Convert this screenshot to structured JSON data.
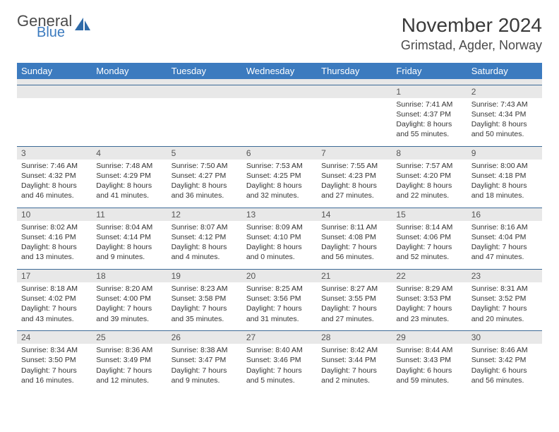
{
  "logo": {
    "general": "General",
    "blue": "Blue"
  },
  "header": {
    "month_title": "November 2024",
    "location": "Grimstad, Agder, Norway"
  },
  "colors": {
    "header_bg": "#3c7bbf",
    "header_fg": "#ffffff",
    "numrow_bg": "#e8e8e8",
    "row_border": "#3c6a96",
    "text": "#333333",
    "logo_blue": "#3c7bbf"
  },
  "day_names": [
    "Sunday",
    "Monday",
    "Tuesday",
    "Wednesday",
    "Thursday",
    "Friday",
    "Saturday"
  ],
  "weeks": [
    [
      null,
      null,
      null,
      null,
      null,
      {
        "n": "1",
        "sunrise": "7:41 AM",
        "sunset": "4:37 PM",
        "dh": "8",
        "dm": "55"
      },
      {
        "n": "2",
        "sunrise": "7:43 AM",
        "sunset": "4:34 PM",
        "dh": "8",
        "dm": "50"
      }
    ],
    [
      {
        "n": "3",
        "sunrise": "7:46 AM",
        "sunset": "4:32 PM",
        "dh": "8",
        "dm": "46"
      },
      {
        "n": "4",
        "sunrise": "7:48 AM",
        "sunset": "4:29 PM",
        "dh": "8",
        "dm": "41"
      },
      {
        "n": "5",
        "sunrise": "7:50 AM",
        "sunset": "4:27 PM",
        "dh": "8",
        "dm": "36"
      },
      {
        "n": "6",
        "sunrise": "7:53 AM",
        "sunset": "4:25 PM",
        "dh": "8",
        "dm": "32"
      },
      {
        "n": "7",
        "sunrise": "7:55 AM",
        "sunset": "4:23 PM",
        "dh": "8",
        "dm": "27"
      },
      {
        "n": "8",
        "sunrise": "7:57 AM",
        "sunset": "4:20 PM",
        "dh": "8",
        "dm": "22"
      },
      {
        "n": "9",
        "sunrise": "8:00 AM",
        "sunset": "4:18 PM",
        "dh": "8",
        "dm": "18"
      }
    ],
    [
      {
        "n": "10",
        "sunrise": "8:02 AM",
        "sunset": "4:16 PM",
        "dh": "8",
        "dm": "13"
      },
      {
        "n": "11",
        "sunrise": "8:04 AM",
        "sunset": "4:14 PM",
        "dh": "8",
        "dm": "9"
      },
      {
        "n": "12",
        "sunrise": "8:07 AM",
        "sunset": "4:12 PM",
        "dh": "8",
        "dm": "4"
      },
      {
        "n": "13",
        "sunrise": "8:09 AM",
        "sunset": "4:10 PM",
        "dh": "8",
        "dm": "0"
      },
      {
        "n": "14",
        "sunrise": "8:11 AM",
        "sunset": "4:08 PM",
        "dh": "7",
        "dm": "56"
      },
      {
        "n": "15",
        "sunrise": "8:14 AM",
        "sunset": "4:06 PM",
        "dh": "7",
        "dm": "52"
      },
      {
        "n": "16",
        "sunrise": "8:16 AM",
        "sunset": "4:04 PM",
        "dh": "7",
        "dm": "47"
      }
    ],
    [
      {
        "n": "17",
        "sunrise": "8:18 AM",
        "sunset": "4:02 PM",
        "dh": "7",
        "dm": "43"
      },
      {
        "n": "18",
        "sunrise": "8:20 AM",
        "sunset": "4:00 PM",
        "dh": "7",
        "dm": "39"
      },
      {
        "n": "19",
        "sunrise": "8:23 AM",
        "sunset": "3:58 PM",
        "dh": "7",
        "dm": "35"
      },
      {
        "n": "20",
        "sunrise": "8:25 AM",
        "sunset": "3:56 PM",
        "dh": "7",
        "dm": "31"
      },
      {
        "n": "21",
        "sunrise": "8:27 AM",
        "sunset": "3:55 PM",
        "dh": "7",
        "dm": "27"
      },
      {
        "n": "22",
        "sunrise": "8:29 AM",
        "sunset": "3:53 PM",
        "dh": "7",
        "dm": "23"
      },
      {
        "n": "23",
        "sunrise": "8:31 AM",
        "sunset": "3:52 PM",
        "dh": "7",
        "dm": "20"
      }
    ],
    [
      {
        "n": "24",
        "sunrise": "8:34 AM",
        "sunset": "3:50 PM",
        "dh": "7",
        "dm": "16"
      },
      {
        "n": "25",
        "sunrise": "8:36 AM",
        "sunset": "3:49 PM",
        "dh": "7",
        "dm": "12"
      },
      {
        "n": "26",
        "sunrise": "8:38 AM",
        "sunset": "3:47 PM",
        "dh": "7",
        "dm": "9"
      },
      {
        "n": "27",
        "sunrise": "8:40 AM",
        "sunset": "3:46 PM",
        "dh": "7",
        "dm": "5"
      },
      {
        "n": "28",
        "sunrise": "8:42 AM",
        "sunset": "3:44 PM",
        "dh": "7",
        "dm": "2"
      },
      {
        "n": "29",
        "sunrise": "8:44 AM",
        "sunset": "3:43 PM",
        "dh": "6",
        "dm": "59"
      },
      {
        "n": "30",
        "sunrise": "8:46 AM",
        "sunset": "3:42 PM",
        "dh": "6",
        "dm": "56"
      }
    ]
  ],
  "labels": {
    "sunrise": "Sunrise:",
    "sunset": "Sunset:",
    "daylight": "Daylight:",
    "hours_word": "hours",
    "and_word": "and",
    "minutes_word": "minutes."
  }
}
